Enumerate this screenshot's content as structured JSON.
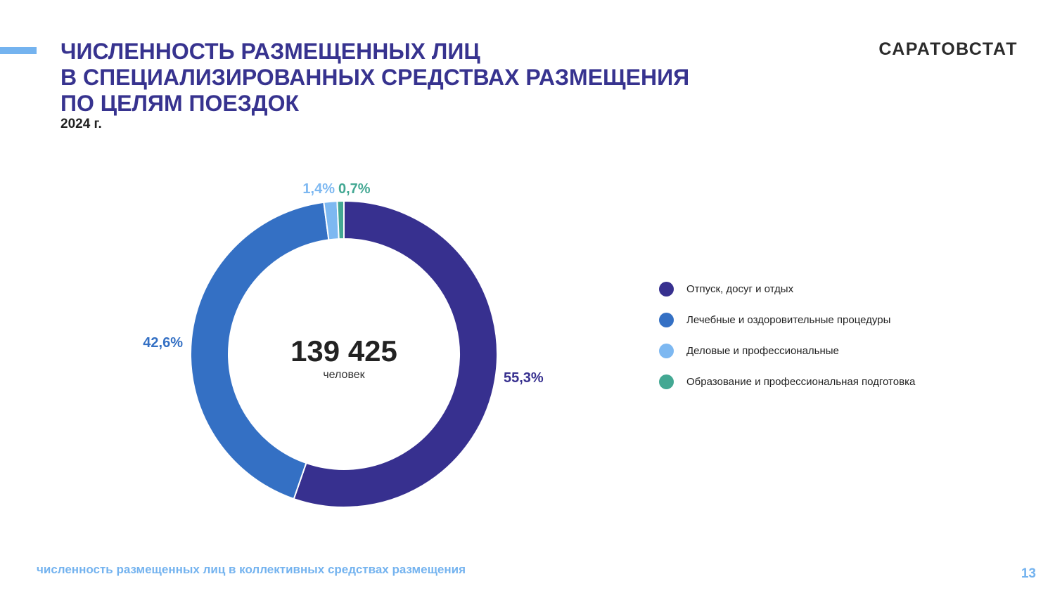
{
  "header": {
    "title_lines": [
      "ЧИСЛЕННОСТЬ РАЗМЕЩЕННЫХ ЛИЦ",
      "В СПЕЦИАЛИЗИРОВАННЫХ СРЕДСТВАХ РАЗМЕЩЕНИЯ",
      "ПО ЦЕЛЯМ ПОЕЗДОК"
    ],
    "subtitle": "2024 г.",
    "brand": "САРАТОВСТАТ"
  },
  "colors": {
    "title": "#37338f",
    "accent": "#74b3ef"
  },
  "chart_data": {
    "type": "pie",
    "donut": true,
    "center_value": "139 425",
    "center_unit": "человек",
    "legend_position": "right",
    "slices": [
      {
        "label": "Отпуск, досуг и отдых",
        "value": 55.3,
        "display": "55,3%",
        "color": "#37308f"
      },
      {
        "label": "Лечебные и оздоровительные процедуры",
        "value": 42.6,
        "display": "42,6%",
        "color": "#3470c4"
      },
      {
        "label": "Деловые и профессиональные",
        "value": 1.4,
        "display": "1,4%",
        "color": "#7db8f1"
      },
      {
        "label": "Образование и профессиональная подготовка",
        "value": 0.7,
        "display": "0,7%",
        "color": "#43a893"
      }
    ]
  },
  "footer": {
    "note": "численность размещенных лиц в коллективных средствах размещения",
    "page_number": "13"
  }
}
